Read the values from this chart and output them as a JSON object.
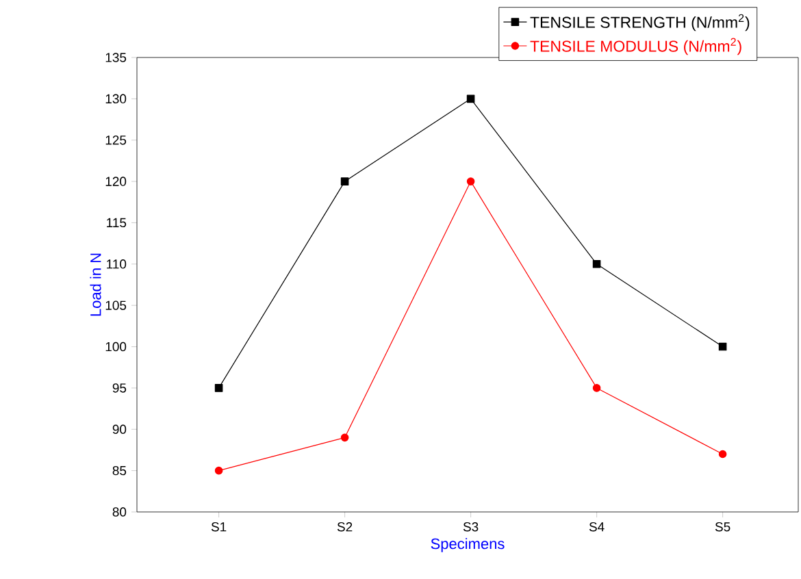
{
  "chart_data": {
    "type": "line",
    "xlabel": "Specimens",
    "ylabel": "Load in N",
    "categories": [
      "S1",
      "S2",
      "S3",
      "S4",
      "S5"
    ],
    "series": [
      {
        "name": "TENSILE STRENGTH (N/mm$^{2}$)",
        "color": "#000000",
        "marker": "square",
        "values": [
          95,
          120,
          130,
          110,
          100
        ]
      },
      {
        "name": "TENSILE MODULUS (N/mm$^{2}$)",
        "color": "#ff0000",
        "marker": "circle",
        "values": [
          85,
          89,
          120,
          95,
          87
        ]
      }
    ],
    "ylim": [
      80,
      135
    ],
    "yticks": [
      80,
      85,
      90,
      95,
      100,
      105,
      110,
      115,
      120,
      125,
      130,
      135
    ],
    "grid": false,
    "legend": "top right",
    "line_style": "solid"
  }
}
